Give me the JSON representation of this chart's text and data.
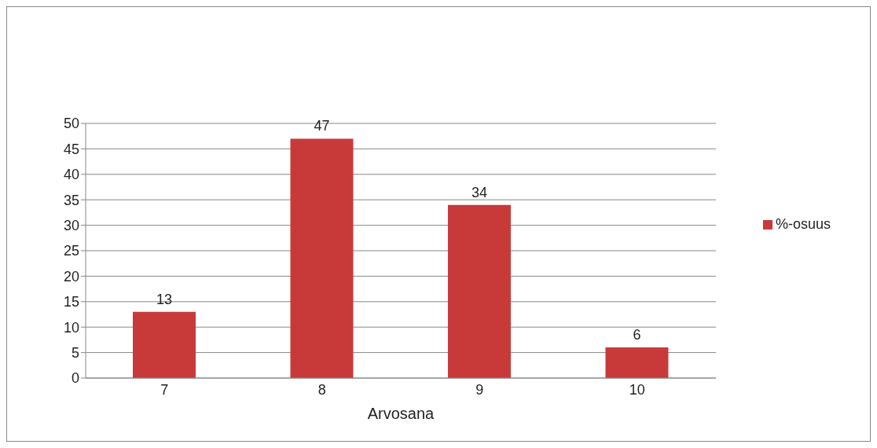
{
  "chart_data": {
    "type": "bar",
    "xlabel": "Arvosana",
    "categories": [
      "7",
      "8",
      "9",
      "10"
    ],
    "series": [
      {
        "name": "%-osuus",
        "color": "#c83a3a",
        "values": [
          13,
          47,
          34,
          6
        ]
      }
    ],
    "ylim": [
      0,
      50
    ],
    "yticks": [
      0,
      5,
      10,
      15,
      20,
      25,
      30,
      35,
      40,
      45,
      50
    ],
    "grid": "y",
    "legend": "right",
    "data_labels": true
  }
}
